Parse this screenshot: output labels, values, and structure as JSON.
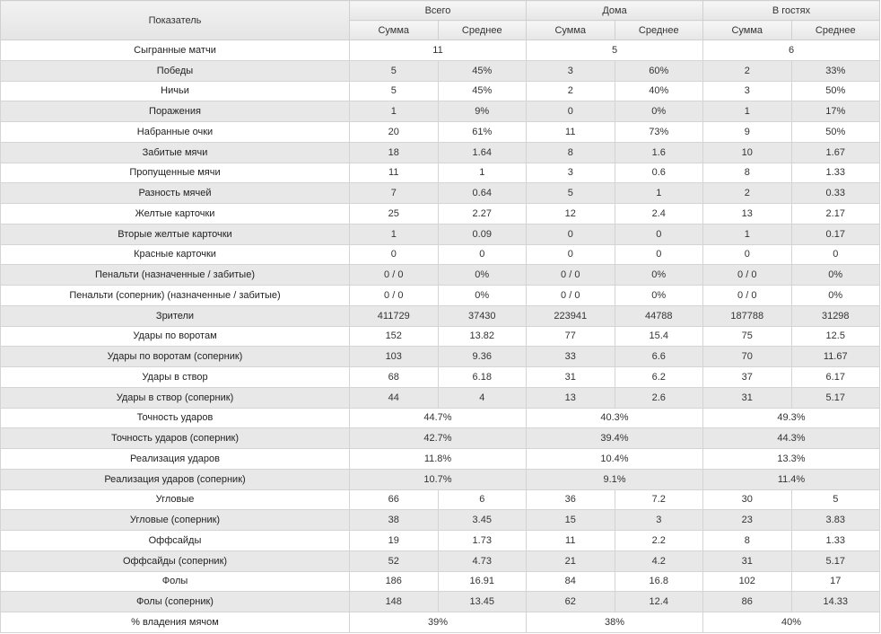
{
  "header": {
    "indicator": "Показатель",
    "groups": [
      "Всего",
      "Дома",
      "В гостях"
    ],
    "sub_sum": "Сумма",
    "sub_avg": "Среднее"
  },
  "rows": [
    {
      "label": "Сыгранные матчи",
      "merged": [
        "11",
        "5",
        "6"
      ]
    },
    {
      "label": "Победы",
      "values": [
        "5",
        "45%",
        "3",
        "60%",
        "2",
        "33%"
      ]
    },
    {
      "label": "Ничьи",
      "values": [
        "5",
        "45%",
        "2",
        "40%",
        "3",
        "50%"
      ]
    },
    {
      "label": "Поражения",
      "values": [
        "1",
        "9%",
        "0",
        "0%",
        "1",
        "17%"
      ]
    },
    {
      "label": "Набранные очки",
      "values": [
        "20",
        "61%",
        "11",
        "73%",
        "9",
        "50%"
      ]
    },
    {
      "label": "Забитые мячи",
      "values": [
        "18",
        "1.64",
        "8",
        "1.6",
        "10",
        "1.67"
      ]
    },
    {
      "label": "Пропущенные мячи",
      "values": [
        "11",
        "1",
        "3",
        "0.6",
        "8",
        "1.33"
      ]
    },
    {
      "label": "Разность мячей",
      "values": [
        "7",
        "0.64",
        "5",
        "1",
        "2",
        "0.33"
      ]
    },
    {
      "label": "Желтые карточки",
      "values": [
        "25",
        "2.27",
        "12",
        "2.4",
        "13",
        "2.17"
      ]
    },
    {
      "label": "Вторые желтые карточки",
      "values": [
        "1",
        "0.09",
        "0",
        "0",
        "1",
        "0.17"
      ]
    },
    {
      "label": "Красные карточки",
      "values": [
        "0",
        "0",
        "0",
        "0",
        "0",
        "0"
      ]
    },
    {
      "label": "Пенальти (назначенные / забитые)",
      "values": [
        "0 / 0",
        "0%",
        "0 / 0",
        "0%",
        "0 / 0",
        "0%"
      ]
    },
    {
      "label": "Пенальти (соперник) (назначенные / забитые)",
      "values": [
        "0 / 0",
        "0%",
        "0 / 0",
        "0%",
        "0 / 0",
        "0%"
      ]
    },
    {
      "label": "Зрители",
      "values": [
        "411729",
        "37430",
        "223941",
        "44788",
        "187788",
        "31298"
      ]
    },
    {
      "label": "Удары по воротам",
      "values": [
        "152",
        "13.82",
        "77",
        "15.4",
        "75",
        "12.5"
      ]
    },
    {
      "label": "Удары по воротам (соперник)",
      "values": [
        "103",
        "9.36",
        "33",
        "6.6",
        "70",
        "11.67"
      ]
    },
    {
      "label": "Удары в створ",
      "values": [
        "68",
        "6.18",
        "31",
        "6.2",
        "37",
        "6.17"
      ]
    },
    {
      "label": "Удары в створ (соперник)",
      "values": [
        "44",
        "4",
        "13",
        "2.6",
        "31",
        "5.17"
      ]
    },
    {
      "label": "Точность ударов",
      "merged": [
        "44.7%",
        "40.3%",
        "49.3%"
      ]
    },
    {
      "label": "Точность ударов (соперник)",
      "merged": [
        "42.7%",
        "39.4%",
        "44.3%"
      ]
    },
    {
      "label": "Реализация ударов",
      "merged": [
        "11.8%",
        "10.4%",
        "13.3%"
      ]
    },
    {
      "label": "Реализация ударов (соперник)",
      "merged": [
        "10.7%",
        "9.1%",
        "11.4%"
      ]
    },
    {
      "label": "Угловые",
      "values": [
        "66",
        "6",
        "36",
        "7.2",
        "30",
        "5"
      ]
    },
    {
      "label": "Угловые (соперник)",
      "values": [
        "38",
        "3.45",
        "15",
        "3",
        "23",
        "3.83"
      ]
    },
    {
      "label": "Оффсайды",
      "values": [
        "19",
        "1.73",
        "11",
        "2.2",
        "8",
        "1.33"
      ]
    },
    {
      "label": "Оффсайды (соперник)",
      "values": [
        "52",
        "4.73",
        "21",
        "4.2",
        "31",
        "5.17"
      ]
    },
    {
      "label": "Фолы",
      "values": [
        "186",
        "16.91",
        "84",
        "16.8",
        "102",
        "17"
      ]
    },
    {
      "label": "Фолы (соперник)",
      "values": [
        "148",
        "13.45",
        "62",
        "12.4",
        "86",
        "14.33"
      ]
    },
    {
      "label": "% владения мячом",
      "merged": [
        "39%",
        "38%",
        "40%"
      ]
    }
  ]
}
